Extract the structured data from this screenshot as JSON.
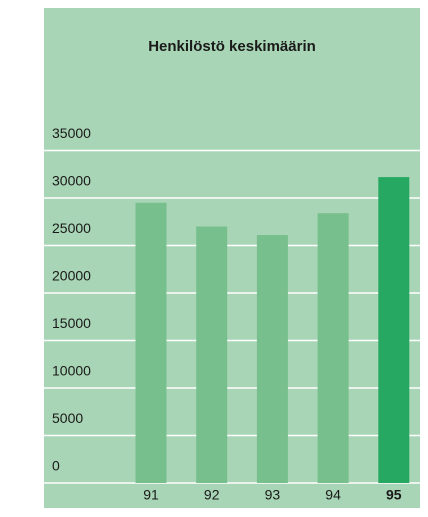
{
  "chart_data": {
    "type": "bar",
    "title": "Henkilöstö keskimäärin",
    "categories": [
      "91",
      "92",
      "93",
      "94",
      "95"
    ],
    "values": [
      29500,
      27000,
      26100,
      28400,
      32200
    ],
    "colors": [
      "#77bf8c",
      "#77bf8c",
      "#77bf8c",
      "#77bf8c",
      "#27a862"
    ],
    "background": "#a8d5b5",
    "ylim": [
      0,
      35000
    ],
    "yticks": [
      0,
      5000,
      10000,
      15000,
      20000,
      25000,
      30000,
      35000
    ],
    "grid": true
  }
}
